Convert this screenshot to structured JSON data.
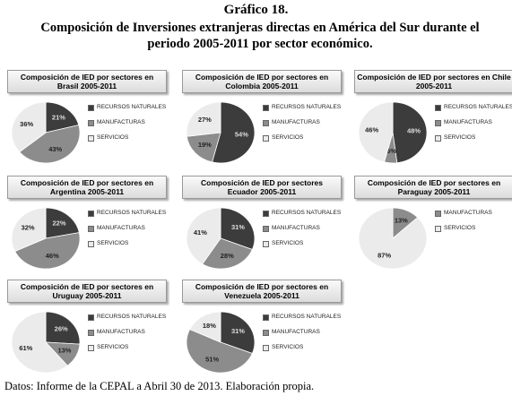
{
  "header": {
    "title": "Gráfico 18.",
    "subtitle": "Composición de Inversiones extranjeras directas en América del Sur durante el periodo 2005-2011 por sector económico."
  },
  "source": "Datos: Informe de la CEPAL a Abril 30 de 2013. Elaboración propia.",
  "chart_data": [
    {
      "type": "pie",
      "title": "Composición de IED por sectores en Brasil 2005-2011",
      "categories": [
        "RECURSOS NATURALES",
        "MANUFACTURAS",
        "SERVICIOS"
      ],
      "values": [
        21,
        43,
        36
      ],
      "value_labels": [
        "21%",
        "43%",
        "36%"
      ],
      "colors": [
        "#3c3c3c",
        "#8c8c8c",
        "#ebebeb"
      ]
    },
    {
      "type": "pie",
      "title": "Composición de IED por sectores en Colombia 2005-2011",
      "categories": [
        "RECURSOS NATURALES",
        "MANUFACTURAS",
        "SERVICIOS"
      ],
      "values": [
        54,
        19,
        27
      ],
      "value_labels": [
        "54%",
        "19%",
        "27%"
      ],
      "colors": [
        "#3c3c3c",
        "#8c8c8c",
        "#ebebeb"
      ]
    },
    {
      "type": "pie",
      "title": "Composición de IED por sectores en Chile 2005-2011",
      "categories": [
        "RECURSOS NATURALES",
        "MANUFACTURAS",
        "SERVICIOS"
      ],
      "values": [
        48,
        6,
        46
      ],
      "value_labels": [
        "48%",
        "6%",
        "46%"
      ],
      "colors": [
        "#3c3c3c",
        "#8c8c8c",
        "#ebebeb"
      ]
    },
    {
      "type": "pie",
      "title": "Composición de IED por sectores en Argentina 2005-2011",
      "categories": [
        "RECURSOS NATURALES",
        "MANUFACTURAS",
        "SERVICIOS"
      ],
      "values": [
        22,
        46,
        32
      ],
      "value_labels": [
        "22%",
        "46%",
        "32%"
      ],
      "colors": [
        "#3c3c3c",
        "#8c8c8c",
        "#ebebeb"
      ]
    },
    {
      "type": "pie",
      "title": "Composición de IED por sectores Ecuador 2005-2011",
      "categories": [
        "RECURSOS NATURALES",
        "MANUFACTURAS",
        "SERVICIOS"
      ],
      "values": [
        31,
        28,
        41
      ],
      "value_labels": [
        "31%",
        "28%",
        "41%"
      ],
      "colors": [
        "#3c3c3c",
        "#8c8c8c",
        "#ebebeb"
      ]
    },
    {
      "type": "pie",
      "title": "Composición de IED por sectores en Paraguay 2005-2011",
      "categories": [
        "MANUFACTURAS",
        "SERVICIOS"
      ],
      "values": [
        13,
        87
      ],
      "value_labels": [
        "13%",
        "87%"
      ],
      "colors": [
        "#8c8c8c",
        "#ebebeb"
      ]
    },
    {
      "type": "pie",
      "title": "Composición de IED por sectores en Uruguay 2005-2011",
      "categories": [
        "RECURSOS NATURALES",
        "MANUFACTURAS",
        "SERVICIOS"
      ],
      "values": [
        26,
        13,
        61
      ],
      "value_labels": [
        "26%",
        "13%",
        "61%"
      ],
      "colors": [
        "#3c3c3c",
        "#8c8c8c",
        "#ebebeb"
      ]
    },
    {
      "type": "pie",
      "title": "Composición de IED por sectores en Venezuela 2005-2011",
      "categories": [
        "RECURSOS NATURALES",
        "MANUFACTURAS",
        "SERVICIOS"
      ],
      "values": [
        31,
        51,
        18
      ],
      "value_labels": [
        "31%",
        "51%",
        "18%"
      ],
      "colors": [
        "#3c3c3c",
        "#8c8c8c",
        "#ebebeb"
      ]
    }
  ]
}
